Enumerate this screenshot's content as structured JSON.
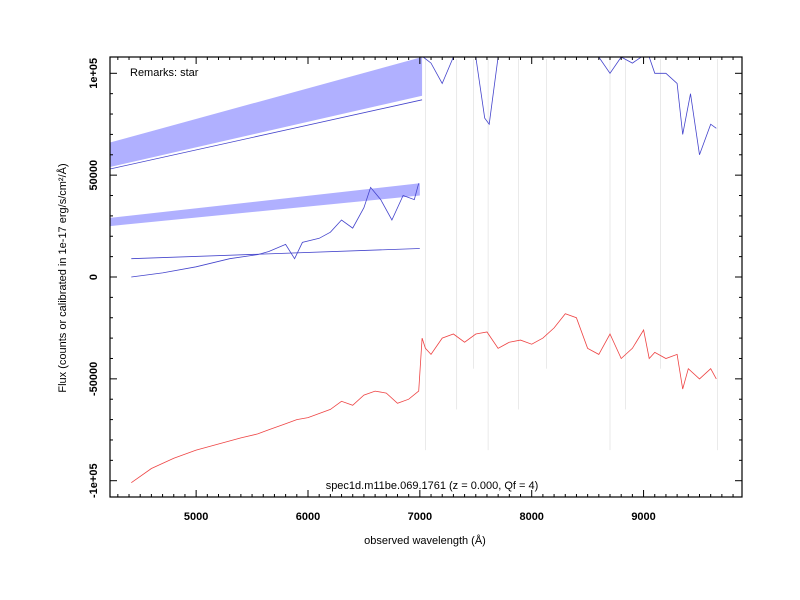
{
  "chart_data": {
    "type": "line",
    "title": "",
    "xlabel": "observed wavelength (Å)",
    "ylabel": "Flux (counts or calibrated in 1e-17 erg/s/cm²/Å)",
    "xlim": [
      4230,
      9880
    ],
    "ylim": [
      -108000,
      108000
    ],
    "x_ticks": [
      5000,
      6000,
      7000,
      8000,
      9000
    ],
    "x_tick_labels": [
      "5000",
      "6000",
      "7000",
      "8000",
      "9000"
    ],
    "y_ticks": [
      -100000,
      -50000,
      0,
      50000,
      100000
    ],
    "y_tick_labels": [
      "-1e+05",
      "-50000",
      "0",
      "50000",
      "1e+05"
    ],
    "grid": false,
    "annotations": {
      "remarks": "Remarks: star",
      "object": "spec1d.m11be.069.1761 (z = 0.000, Qf = 4)"
    },
    "colors": {
      "blue_band": "#b0b0ff",
      "blue_line": "#4444cc",
      "red_line": "#ee4444",
      "gray_noise": "#aaaaaa"
    },
    "series": [
      {
        "x": [
          4420,
          4700,
          5000,
          5300,
          5550,
          5650,
          5800,
          5880,
          5950,
          6100,
          6200,
          6300,
          6400,
          6500,
          6560,
          6650,
          6750,
          6850,
          6950,
          6990
        ],
        "values": [
          0,
          2000,
          5000,
          9000,
          11000,
          12500,
          16000,
          9000,
          17000,
          19000,
          22000,
          28000,
          24000,
          34000,
          44000,
          38000,
          28000,
          40000,
          38000,
          46000
        ]
      },
      {
        "x": [
          4420,
          7000
        ],
        "values": [
          9000,
          14000
        ]
      },
      {
        "x": [
          4230,
          7020
        ],
        "values": [
          53000,
          87000
        ]
      },
      {
        "x": [
          7030,
          7100,
          7200,
          7300,
          7400,
          7500,
          7580,
          7620,
          7700,
          7800,
          7900,
          8000,
          8100,
          8200,
          8300,
          8400,
          8500,
          8600,
          8700,
          8800,
          8900,
          8980,
          9050,
          9100,
          9200,
          9300,
          9350,
          9420,
          9500,
          9600,
          9650
        ],
        "values": [
          108000,
          105000,
          95000,
          108000,
          108000,
          108000,
          78000,
          75000,
          108000,
          108000,
          108000,
          108000,
          108000,
          108000,
          108000,
          108000,
          108000,
          108000,
          100000,
          108000,
          105000,
          108000,
          108000,
          100000,
          100000,
          95000,
          70000,
          90000,
          60000,
          75000,
          73000
        ]
      },
      {
        "x": [
          4420,
          4600,
          4800,
          5000,
          5200,
          5400,
          5550,
          5650,
          5800,
          5900,
          6000,
          6100,
          6200,
          6300,
          6400,
          6500,
          6600,
          6700,
          6800,
          6900,
          6990,
          7020,
          7050,
          7100,
          7200,
          7300,
          7400,
          7500,
          7600,
          7700,
          7800,
          7900,
          8000,
          8100,
          8200,
          8300,
          8400,
          8500,
          8600,
          8700,
          8800,
          8900,
          9000,
          9050,
          9100,
          9200,
          9300,
          9350,
          9400,
          9500,
          9600,
          9650
        ],
        "values": [
          -101000,
          -94000,
          -89000,
          -85000,
          -82000,
          -79000,
          -77000,
          -75000,
          -72000,
          -70000,
          -69000,
          -67000,
          -65000,
          -61000,
          -63000,
          -58000,
          -56000,
          -57000,
          -62000,
          -60000,
          -56000,
          -30000,
          -35000,
          -38000,
          -30000,
          -28000,
          -32000,
          -28000,
          -27000,
          -35000,
          -32000,
          -31000,
          -33000,
          -30000,
          -25000,
          -18000,
          -20000,
          -35000,
          -38000,
          -28000,
          -40000,
          -35000,
          -26000,
          -40000,
          -37000,
          -40000,
          -38000,
          -55000,
          -45000,
          -50000,
          -45000,
          -50000
        ]
      }
    ],
    "bands": [
      {
        "x": [
          4230,
          7020
        ],
        "lower": [
          54000,
          89000
        ],
        "upper": [
          66000,
          108000
        ]
      },
      {
        "x": [
          4230,
          7000
        ],
        "lower": [
          25000,
          40000
        ],
        "upper": [
          29000,
          46000
        ]
      }
    ]
  }
}
